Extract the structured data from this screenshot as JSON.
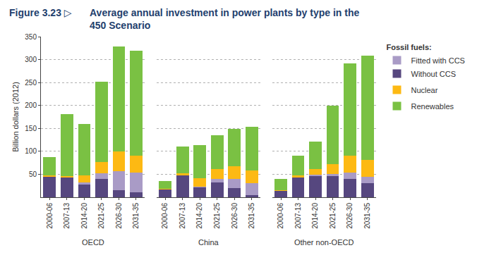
{
  "chart_data": {
    "type": "bar",
    "figure_label": "Figure 3.23 ▷",
    "title": "Average annual investment in power plants by type in the 450 Scenario",
    "y_label": "Billion dollars (2012)",
    "ylim": [
      0,
      350
    ],
    "yticks": [
      50,
      100,
      150,
      200,
      250,
      300,
      350
    ],
    "grid": true,
    "stacked": true,
    "legend": "right",
    "series": [
      {
        "name": "Without CCS",
        "color": "#56477f"
      },
      {
        "name": "Fitted with CCS",
        "color": "#a99bc6"
      },
      {
        "name": "Nuclear",
        "color": "#fdb913"
      },
      {
        "name": "Renewables",
        "color": "#7ac143"
      }
    ],
    "legend_group": {
      "title": "Fossil fuels:",
      "members": [
        "Fitted with CCS",
        "Without CCS"
      ]
    },
    "panels": [
      {
        "label": "OECD",
        "categories": [
          "2000-06",
          "2007-13",
          "2014-20",
          "2021-25",
          "2026-30",
          "2031-35"
        ],
        "values": {
          "Without CCS": [
            46,
            44,
            28,
            40,
            15,
            10
          ],
          "Fitted with CCS": [
            0,
            0,
            5,
            12,
            42,
            43
          ],
          "Nuclear": [
            2,
            2,
            14,
            25,
            43,
            37
          ],
          "Renewables": [
            40,
            135,
            113,
            175,
            228,
            230
          ]
        }
      },
      {
        "label": "China",
        "categories": [
          "2000-06",
          "2007-13",
          "2014-20",
          "2021-25",
          "2026-30",
          "2031-35"
        ],
        "values": {
          "Without CCS": [
            17,
            49,
            22,
            32,
            20,
            5
          ],
          "Fitted with CCS": [
            0,
            0,
            1,
            8,
            20,
            25
          ],
          "Nuclear": [
            1,
            3,
            18,
            22,
            28,
            28
          ],
          "Renewables": [
            18,
            58,
            72,
            73,
            81,
            96
          ]
        }
      },
      {
        "label": "Other non-OECD",
        "categories": [
          "2000-06",
          "2007-13",
          "2014-20",
          "2021-25",
          "2026-30",
          "2031-35"
        ],
        "values": {
          "Without CCS": [
            14,
            44,
            47,
            47,
            40,
            30
          ],
          "Fitted with CCS": [
            0,
            0,
            2,
            3,
            13,
            15
          ],
          "Nuclear": [
            2,
            3,
            13,
            22,
            38,
            37
          ],
          "Renewables": [
            24,
            44,
            60,
            128,
            201,
            226
          ]
        }
      }
    ]
  }
}
